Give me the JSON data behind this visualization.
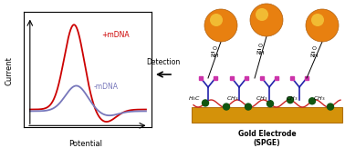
{
  "fig_width": 3.78,
  "fig_height": 1.63,
  "dpi": 100,
  "bg_color": "#ffffff",
  "red_color": "#cc0000",
  "blue_color": "#7777bb",
  "plus_mDNA_label": "+mDNA",
  "minus_mDNA_label": "-mDNA",
  "ylabel": "Current",
  "xlabel": "Potential",
  "detection_label": "Detection",
  "gold_electrode_label": "Gold Electrode",
  "spge_label": "(SPGE)",
  "gold_color": "#d4920a",
  "gold_edge_color": "#b07010",
  "dna_red_color": "#cc2222",
  "antibody_blue_color": "#2222aa",
  "antibody_pink_color": "#cc33aa",
  "nanoparticle_orange": "#e88010",
  "nanoparticle_highlight": "#f5d040",
  "dark_green": "#115511",
  "black": "#000000"
}
